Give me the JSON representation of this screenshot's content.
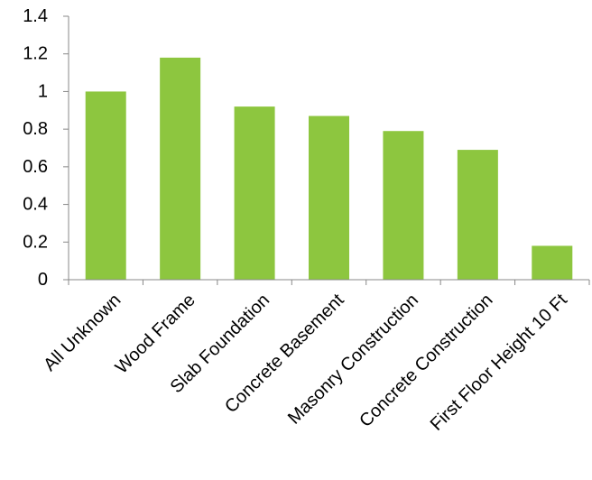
{
  "chart_data": {
    "type": "bar",
    "title": "",
    "xlabel": "",
    "ylabel": "",
    "categories": [
      "All Unknown",
      "Wood Frame",
      "Slab Foundation",
      "Concrete Basement",
      "Masonry Construction",
      "Concrete Construction",
      "First Floor Height 10 Ft"
    ],
    "values": [
      1.0,
      1.18,
      0.92,
      0.87,
      0.79,
      0.69,
      0.18
    ],
    "ylim": [
      0,
      1.4
    ],
    "yticks": [
      "0",
      "0.2",
      "0.4",
      "0.6",
      "0.8",
      "1",
      "1.2",
      "1.4"
    ],
    "ytick_values": [
      0,
      0.2,
      0.4,
      0.6,
      0.8,
      1.0,
      1.2,
      1.4
    ],
    "grid": false,
    "legend": "none",
    "bar_color": "#8dc63f",
    "axis_color": "#888888"
  }
}
